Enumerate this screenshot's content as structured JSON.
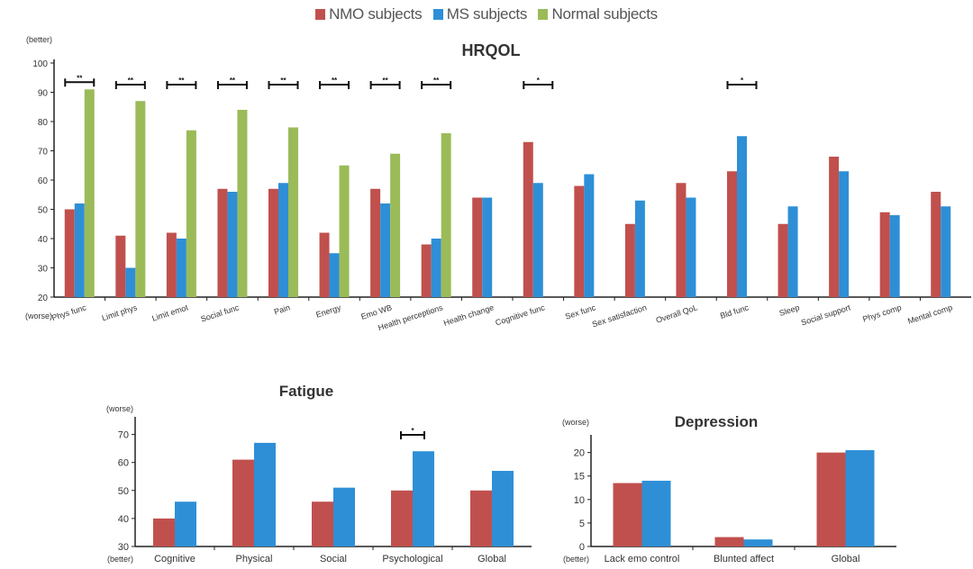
{
  "legend": {
    "items": [
      {
        "label": "NMO subjects",
        "color": "#c0504d"
      },
      {
        "label": "MS subjects",
        "color": "#2e8fd6"
      },
      {
        "label": "Normal subjects",
        "color": "#9bbb59"
      }
    ]
  },
  "colors": {
    "nmo": "#c0504d",
    "ms": "#2e8fd6",
    "normal": "#9bbb59"
  },
  "chart_data": [
    {
      "id": "hrqol",
      "type": "bar",
      "title": "HRQOL",
      "top_label": "(better)",
      "bottom_label": "(worse)",
      "ylim": [
        20,
        100
      ],
      "yticks": [
        20,
        30,
        40,
        50,
        60,
        70,
        80,
        90,
        100
      ],
      "grid": false,
      "categories": [
        "Phys func",
        "Limit phys",
        "Limit emot",
        "Social func",
        "Pain",
        "Energy",
        "Emo WB",
        "Health perceptions",
        "Health change",
        "Cognitive func",
        "Sex func",
        "Sex satisfaction",
        "Overall QoL",
        "Bld func",
        "Sleep",
        "Social support",
        "Phys comp",
        "Mental comp"
      ],
      "series": [
        {
          "name": "NMO subjects",
          "values": [
            50,
            41,
            42,
            57,
            57,
            42,
            57,
            38,
            54,
            73,
            58,
            45,
            59,
            63,
            45,
            68,
            49,
            56
          ]
        },
        {
          "name": "MS subjects",
          "values": [
            52,
            30,
            40,
            56,
            59,
            35,
            52,
            40,
            54,
            59,
            62,
            53,
            54,
            75,
            51,
            63,
            48,
            51
          ]
        },
        {
          "name": "Normal subjects",
          "values": [
            91,
            87,
            77,
            84,
            78,
            65,
            69,
            76,
            null,
            null,
            null,
            null,
            null,
            null,
            null,
            null,
            null,
            null
          ]
        }
      ],
      "annotations": [
        {
          "index": 0,
          "text": "**"
        },
        {
          "index": 1,
          "text": "**"
        },
        {
          "index": 2,
          "text": "**"
        },
        {
          "index": 3,
          "text": "**"
        },
        {
          "index": 4,
          "text": "**"
        },
        {
          "index": 5,
          "text": "**"
        },
        {
          "index": 6,
          "text": "**"
        },
        {
          "index": 7,
          "text": "**"
        },
        {
          "index": 9,
          "text": "*"
        },
        {
          "index": 13,
          "text": "*"
        }
      ]
    },
    {
      "id": "fatigue",
      "type": "bar",
      "title": "Fatigue",
      "top_label": "(worse)",
      "bottom_label": "(better)",
      "ylim": [
        30,
        75
      ],
      "yticks": [
        30,
        40,
        50,
        60,
        70
      ],
      "grid": false,
      "categories": [
        "Cognitive",
        "Physical",
        "Social",
        "Psychological",
        "Global"
      ],
      "series": [
        {
          "name": "NMO subjects",
          "values": [
            40,
            61,
            46,
            50,
            50
          ]
        },
        {
          "name": "MS subjects",
          "values": [
            46,
            67,
            51,
            64,
            57
          ]
        }
      ],
      "annotations": [
        {
          "index": 3,
          "text": "*"
        }
      ]
    },
    {
      "id": "depression",
      "type": "bar",
      "title": "Depression",
      "top_label": "(worse)",
      "bottom_label": "(better)",
      "ylim": [
        0,
        23
      ],
      "yticks": [
        0,
        5,
        10,
        15,
        20
      ],
      "grid": false,
      "categories": [
        "Lack emo control",
        "Blunted affect",
        "Global"
      ],
      "series": [
        {
          "name": "NMO subjects",
          "values": [
            13.5,
            2,
            20
          ]
        },
        {
          "name": "MS subjects",
          "values": [
            14,
            1.5,
            20.5
          ]
        }
      ],
      "annotations": []
    }
  ]
}
